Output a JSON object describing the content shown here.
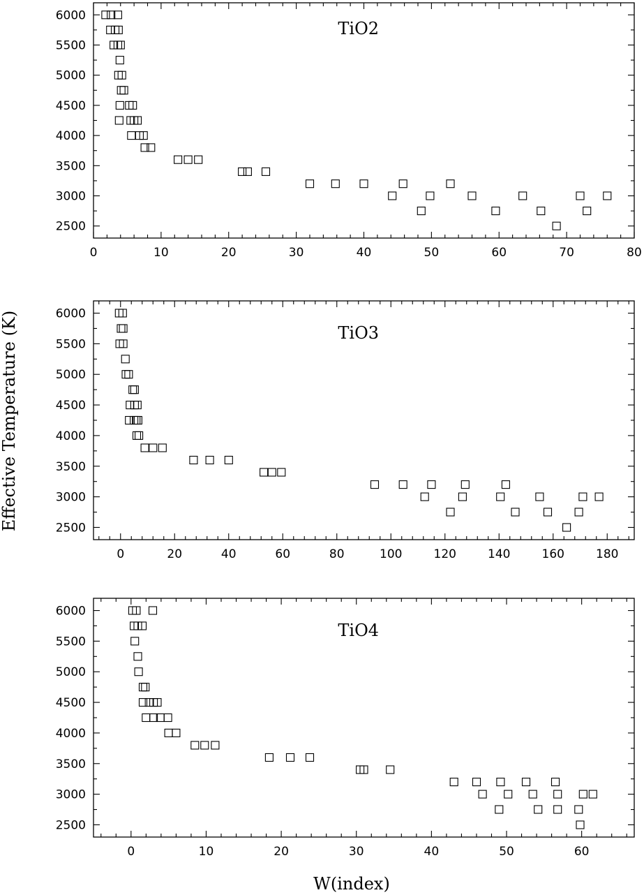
{
  "ylabel": "Effective Temperature (K)",
  "xlabel": "W(index)",
  "chart_data": [
    {
      "type": "scatter",
      "label": "TiO2",
      "xlim": [
        0,
        80
      ],
      "ylim": [
        2300,
        6200
      ],
      "xticks": [
        0,
        10,
        20,
        30,
        40,
        50,
        60,
        70,
        80
      ],
      "yticks": [
        2500,
        3000,
        3500,
        4000,
        4500,
        5000,
        5500,
        6000
      ],
      "points": [
        [
          1.8,
          6000
        ],
        [
          2.6,
          6000
        ],
        [
          3.6,
          6000
        ],
        [
          2.5,
          5750
        ],
        [
          3.2,
          5750
        ],
        [
          3.7,
          5750
        ],
        [
          3.0,
          5500
        ],
        [
          3.6,
          5500
        ],
        [
          4.0,
          5500
        ],
        [
          3.9,
          5250
        ],
        [
          3.7,
          5000
        ],
        [
          4.2,
          5000
        ],
        [
          4.1,
          4750
        ],
        [
          4.5,
          4750
        ],
        [
          3.9,
          4500
        ],
        [
          5.3,
          4500
        ],
        [
          5.8,
          4500
        ],
        [
          3.8,
          4250
        ],
        [
          5.5,
          4250
        ],
        [
          6.0,
          4250
        ],
        [
          6.5,
          4250
        ],
        [
          5.6,
          4000
        ],
        [
          6.8,
          4000
        ],
        [
          7.4,
          4000
        ],
        [
          7.6,
          3800
        ],
        [
          8.5,
          3800
        ],
        [
          12.5,
          3600
        ],
        [
          14.0,
          3600
        ],
        [
          15.5,
          3600
        ],
        [
          22.0,
          3400
        ],
        [
          22.8,
          3400
        ],
        [
          25.5,
          3400
        ],
        [
          32.0,
          3200
        ],
        [
          35.8,
          3200
        ],
        [
          40.0,
          3200
        ],
        [
          45.8,
          3200
        ],
        [
          52.8,
          3200
        ],
        [
          44.2,
          3000
        ],
        [
          49.8,
          3000
        ],
        [
          56.0,
          3000
        ],
        [
          63.5,
          3000
        ],
        [
          72.0,
          3000
        ],
        [
          76.0,
          3000
        ],
        [
          48.5,
          2750
        ],
        [
          59.5,
          2750
        ],
        [
          66.2,
          2750
        ],
        [
          73.0,
          2750
        ],
        [
          68.5,
          2500
        ]
      ]
    },
    {
      "type": "scatter",
      "label": "TiO3",
      "xlim": [
        -10,
        190
      ],
      "ylim": [
        2300,
        6200
      ],
      "xticks": [
        0,
        20,
        40,
        60,
        80,
        100,
        120,
        140,
        160,
        180
      ],
      "yticks": [
        2500,
        3000,
        3500,
        4000,
        4500,
        5000,
        5500,
        6000
      ],
      "points": [
        [
          -0.5,
          6000
        ],
        [
          0.8,
          6000
        ],
        [
          0.2,
          5750
        ],
        [
          1.0,
          5750
        ],
        [
          -0.3,
          5500
        ],
        [
          1.0,
          5500
        ],
        [
          1.8,
          5250
        ],
        [
          2.0,
          5000
        ],
        [
          3.0,
          5000
        ],
        [
          4.5,
          4750
        ],
        [
          5.2,
          4750
        ],
        [
          3.5,
          4500
        ],
        [
          5.2,
          4500
        ],
        [
          6.2,
          4500
        ],
        [
          3.2,
          4250
        ],
        [
          5.0,
          4250
        ],
        [
          5.8,
          4250
        ],
        [
          6.5,
          4250
        ],
        [
          6.0,
          4000
        ],
        [
          6.8,
          4000
        ],
        [
          9.0,
          3800
        ],
        [
          12.0,
          3800
        ],
        [
          15.5,
          3800
        ],
        [
          27.0,
          3600
        ],
        [
          33.0,
          3600
        ],
        [
          40.0,
          3600
        ],
        [
          53.0,
          3400
        ],
        [
          56.0,
          3400
        ],
        [
          59.5,
          3400
        ],
        [
          94.0,
          3200
        ],
        [
          104.5,
          3200
        ],
        [
          115.0,
          3200
        ],
        [
          127.5,
          3200
        ],
        [
          142.5,
          3200
        ],
        [
          112.5,
          3000
        ],
        [
          126.5,
          3000
        ],
        [
          140.5,
          3000
        ],
        [
          155.0,
          3000
        ],
        [
          171.0,
          3000
        ],
        [
          177.0,
          3000
        ],
        [
          122.0,
          2750
        ],
        [
          146.0,
          2750
        ],
        [
          158.0,
          2750
        ],
        [
          169.5,
          2750
        ],
        [
          165.0,
          2500
        ]
      ]
    },
    {
      "type": "scatter",
      "label": "TiO4",
      "xlim": [
        -5,
        67
      ],
      "ylim": [
        2300,
        6200
      ],
      "xticks": [
        0,
        10,
        20,
        30,
        40,
        50,
        60
      ],
      "yticks": [
        2500,
        3000,
        3500,
        4000,
        4500,
        5000,
        5500,
        6000
      ],
      "points": [
        [
          0.2,
          6000
        ],
        [
          0.7,
          6000
        ],
        [
          2.9,
          6000
        ],
        [
          0.4,
          5750
        ],
        [
          0.9,
          5750
        ],
        [
          1.5,
          5750
        ],
        [
          0.5,
          5500
        ],
        [
          0.9,
          5250
        ],
        [
          1.0,
          5000
        ],
        [
          1.6,
          4750
        ],
        [
          1.9,
          4750
        ],
        [
          1.6,
          4500
        ],
        [
          2.4,
          4500
        ],
        [
          3.0,
          4500
        ],
        [
          3.5,
          4500
        ],
        [
          2.0,
          4250
        ],
        [
          3.0,
          4250
        ],
        [
          3.9,
          4250
        ],
        [
          4.9,
          4250
        ],
        [
          5.0,
          4000
        ],
        [
          6.0,
          4000
        ],
        [
          8.5,
          3800
        ],
        [
          9.8,
          3800
        ],
        [
          11.2,
          3800
        ],
        [
          18.4,
          3600
        ],
        [
          21.2,
          3600
        ],
        [
          23.8,
          3600
        ],
        [
          30.5,
          3400
        ],
        [
          31.0,
          3400
        ],
        [
          34.5,
          3400
        ],
        [
          43.0,
          3200
        ],
        [
          46.0,
          3200
        ],
        [
          49.2,
          3200
        ],
        [
          52.6,
          3200
        ],
        [
          56.5,
          3200
        ],
        [
          46.8,
          3000
        ],
        [
          50.2,
          3000
        ],
        [
          53.5,
          3000
        ],
        [
          56.8,
          3000
        ],
        [
          60.2,
          3000
        ],
        [
          61.5,
          3000
        ],
        [
          49.0,
          2750
        ],
        [
          54.2,
          2750
        ],
        [
          56.8,
          2750
        ],
        [
          59.6,
          2750
        ],
        [
          59.8,
          2500
        ]
      ]
    }
  ]
}
